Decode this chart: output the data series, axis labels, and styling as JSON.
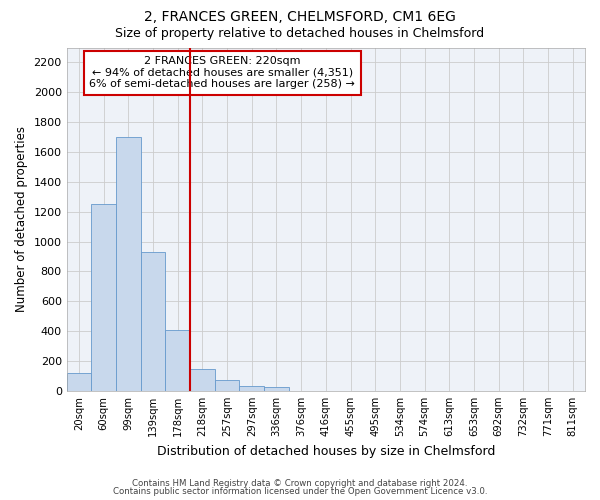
{
  "title_line1": "2, FRANCES GREEN, CHELMSFORD, CM1 6EG",
  "title_line2": "Size of property relative to detached houses in Chelmsford",
  "xlabel": "Distribution of detached houses by size in Chelmsford",
  "ylabel": "Number of detached properties",
  "bar_labels": [
    "20sqm",
    "60sqm",
    "99sqm",
    "139sqm",
    "178sqm",
    "218sqm",
    "257sqm",
    "297sqm",
    "336sqm",
    "376sqm",
    "416sqm",
    "455sqm",
    "495sqm",
    "534sqm",
    "574sqm",
    "613sqm",
    "653sqm",
    "692sqm",
    "732sqm",
    "771sqm",
    "811sqm"
  ],
  "bar_values": [
    120,
    1250,
    1700,
    930,
    410,
    150,
    70,
    35,
    25,
    0,
    0,
    0,
    0,
    0,
    0,
    0,
    0,
    0,
    0,
    0,
    0
  ],
  "bar_color": "#c8d8ec",
  "bar_edgecolor": "#6699cc",
  "highlight_bar_index": 5,
  "highlight_color": "#cc0000",
  "ylim": [
    0,
    2300
  ],
  "yticks": [
    0,
    200,
    400,
    600,
    800,
    1000,
    1200,
    1400,
    1600,
    1800,
    2000,
    2200
  ],
  "annotation_title": "2 FRANCES GREEN: 220sqm",
  "annotation_line1": "← 94% of detached houses are smaller (4,351)",
  "annotation_line2": "6% of semi-detached houses are larger (258) →",
  "annotation_box_color": "#cc0000",
  "footnote_line1": "Contains HM Land Registry data © Crown copyright and database right 2024.",
  "footnote_line2": "Contains public sector information licensed under the Open Government Licence v3.0.",
  "grid_color": "#cccccc",
  "bg_color": "#eef2f8"
}
